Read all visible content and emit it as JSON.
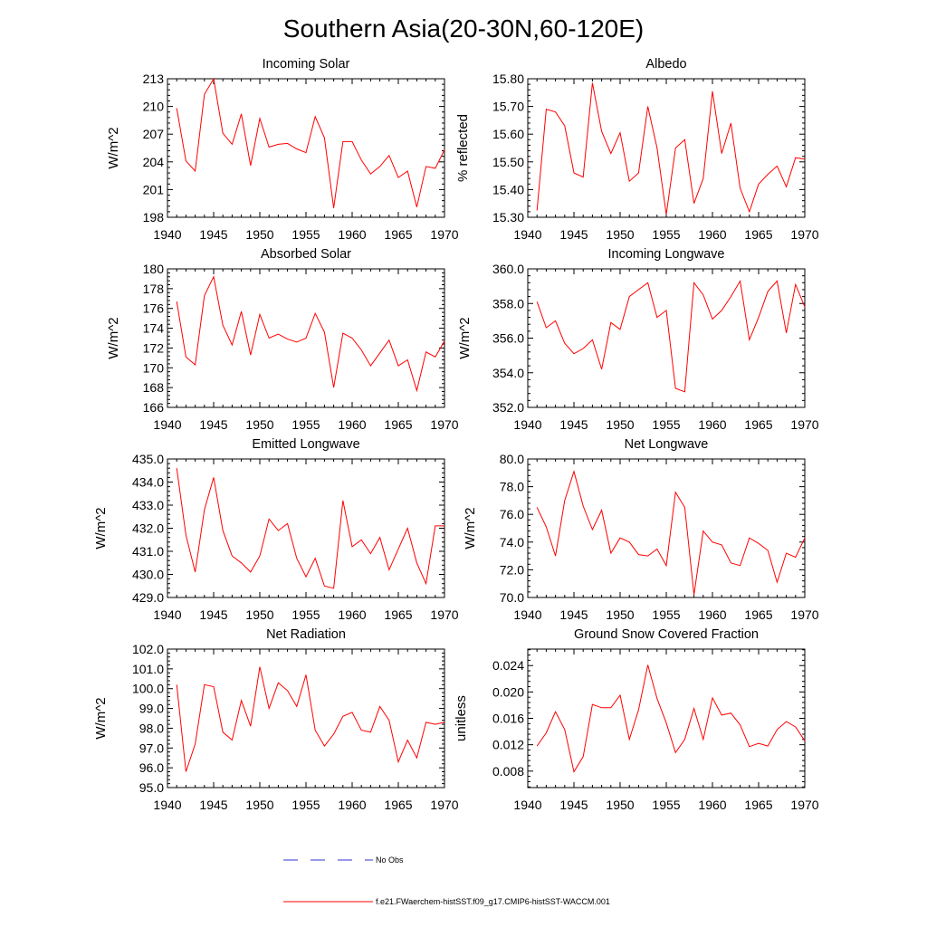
{
  "figure": {
    "title": "Southern Asia(20-30N,60-120E)"
  },
  "legend": {
    "items": [
      {
        "label": "No Obs",
        "color": "#3333cc",
        "style": "dashed"
      },
      {
        "label": "f.e21.FWaerchem-histSST.f09_g17.CMIP6-histSST-WACCM.001",
        "color": "#ff0000",
        "style": "solid"
      }
    ]
  },
  "chart_data": [
    {
      "type": "line",
      "title": "Incoming Solar",
      "ylabel": "W/m^2",
      "xlabel": "",
      "xlim": [
        1940,
        1970
      ],
      "ylim": [
        198,
        213
      ],
      "xticks": [
        1940,
        1945,
        1950,
        1955,
        1960,
        1965,
        1970
      ],
      "yticks": [
        198,
        201,
        204,
        207,
        210,
        213
      ],
      "ytick_labels": [
        "198",
        "201",
        "204",
        "207",
        "210",
        "213"
      ],
      "color": "#ff0000",
      "x": [
        1941,
        1942,
        1943,
        1944,
        1945,
        1946,
        1947,
        1948,
        1949,
        1950,
        1951,
        1952,
        1953,
        1954,
        1955,
        1956,
        1957,
        1958,
        1959,
        1960,
        1961,
        1962,
        1963,
        1964,
        1965,
        1966,
        1967,
        1968,
        1969,
        1970
      ],
      "values": [
        209.8,
        204.1,
        203.0,
        211.3,
        213.0,
        207.1,
        205.9,
        209.2,
        203.6,
        208.7,
        205.6,
        205.9,
        206.0,
        205.4,
        205.0,
        208.9,
        206.6,
        199.0,
        206.2,
        206.2,
        204.2,
        202.7,
        203.5,
        204.7,
        202.3,
        203.0,
        199.1,
        203.5,
        203.3,
        205.3
      ]
    },
    {
      "type": "line",
      "title": "Albedo",
      "ylabel": "% reflected",
      "xlabel": "",
      "xlim": [
        1940,
        1970
      ],
      "ylim": [
        15.3,
        15.8
      ],
      "xticks": [
        1940,
        1945,
        1950,
        1955,
        1960,
        1965,
        1970
      ],
      "yticks": [
        15.3,
        15.4,
        15.5,
        15.6,
        15.7,
        15.8
      ],
      "ytick_labels": [
        "15.30",
        "15.40",
        "15.50",
        "15.60",
        "15.70",
        "15.80"
      ],
      "color": "#ff0000",
      "x": [
        1941,
        1942,
        1943,
        1944,
        1945,
        1946,
        1947,
        1948,
        1949,
        1950,
        1951,
        1952,
        1953,
        1954,
        1955,
        1956,
        1957,
        1958,
        1959,
        1960,
        1961,
        1962,
        1963,
        1964,
        1965,
        1966,
        1967,
        1968,
        1969,
        1970
      ],
      "values": [
        15.325,
        15.69,
        15.68,
        15.63,
        15.46,
        15.445,
        15.785,
        15.61,
        15.53,
        15.605,
        15.43,
        15.46,
        15.7,
        15.55,
        15.31,
        15.55,
        15.58,
        15.35,
        15.44,
        15.755,
        15.53,
        15.64,
        15.405,
        15.32,
        15.42,
        15.455,
        15.485,
        15.41,
        15.515,
        15.51
      ]
    },
    {
      "type": "line",
      "title": "Absorbed Solar",
      "ylabel": "W/m^2",
      "xlabel": "",
      "xlim": [
        1940,
        1970
      ],
      "ylim": [
        166,
        180
      ],
      "xticks": [
        1940,
        1945,
        1950,
        1955,
        1960,
        1965,
        1970
      ],
      "yticks": [
        166,
        168,
        170,
        172,
        174,
        176,
        178,
        180
      ],
      "ytick_labels": [
        "166",
        "168",
        "170",
        "172",
        "174",
        "176",
        "178",
        "180"
      ],
      "color": "#ff0000",
      "x": [
        1941,
        1942,
        1943,
        1944,
        1945,
        1946,
        1947,
        1948,
        1949,
        1950,
        1951,
        1952,
        1953,
        1954,
        1955,
        1956,
        1957,
        1958,
        1959,
        1960,
        1961,
        1962,
        1963,
        1964,
        1965,
        1966,
        1967,
        1968,
        1969,
        1970
      ],
      "values": [
        176.7,
        171.1,
        170.3,
        177.3,
        179.2,
        174.3,
        172.3,
        175.7,
        171.3,
        175.4,
        173.0,
        173.4,
        172.9,
        172.6,
        173.0,
        175.5,
        173.6,
        168.0,
        173.5,
        173.0,
        171.8,
        170.2,
        171.5,
        172.8,
        170.2,
        170.8,
        167.7,
        171.6,
        171.1,
        172.7
      ]
    },
    {
      "type": "line",
      "title": "Incoming Longwave",
      "ylabel": "W/m^2",
      "xlabel": "",
      "xlim": [
        1940,
        1970
      ],
      "ylim": [
        352,
        360
      ],
      "xticks": [
        1940,
        1945,
        1950,
        1955,
        1960,
        1965,
        1970
      ],
      "yticks": [
        352,
        354,
        356,
        358,
        360
      ],
      "ytick_labels": [
        "352.0",
        "354.0",
        "356.0",
        "358.0",
        "360.0"
      ],
      "color": "#ff0000",
      "x": [
        1941,
        1942,
        1943,
        1944,
        1945,
        1946,
        1947,
        1948,
        1949,
        1950,
        1951,
        1952,
        1953,
        1954,
        1955,
        1956,
        1957,
        1958,
        1959,
        1960,
        1961,
        1962,
        1963,
        1964,
        1965,
        1966,
        1967,
        1968,
        1969,
        1970
      ],
      "values": [
        358.1,
        356.6,
        357.0,
        355.7,
        355.1,
        355.4,
        355.9,
        354.2,
        356.9,
        356.5,
        358.4,
        358.8,
        359.2,
        357.2,
        357.6,
        353.1,
        352.9,
        359.2,
        358.5,
        357.1,
        357.6,
        358.4,
        359.3,
        355.9,
        357.2,
        358.7,
        359.3,
        356.3,
        359.1,
        357.8
      ]
    },
    {
      "type": "line",
      "title": "Emitted Longwave",
      "ylabel": "W/m^2",
      "xlabel": "",
      "xlim": [
        1940,
        1970
      ],
      "ylim": [
        429,
        435
      ],
      "xticks": [
        1940,
        1945,
        1950,
        1955,
        1960,
        1965,
        1970
      ],
      "yticks": [
        429,
        430,
        431,
        432,
        433,
        434,
        435
      ],
      "ytick_labels": [
        "429.0",
        "430.0",
        "431.0",
        "432.0",
        "433.0",
        "434.0",
        "435.0"
      ],
      "color": "#ff0000",
      "x": [
        1941,
        1942,
        1943,
        1944,
        1945,
        1946,
        1947,
        1948,
        1949,
        1950,
        1951,
        1952,
        1953,
        1954,
        1955,
        1956,
        1957,
        1958,
        1959,
        1960,
        1961,
        1962,
        1963,
        1964,
        1965,
        1966,
        1967,
        1968,
        1969,
        1970
      ],
      "values": [
        434.6,
        431.7,
        430.1,
        432.8,
        434.2,
        431.9,
        430.8,
        430.5,
        430.1,
        430.8,
        432.4,
        431.9,
        432.2,
        430.7,
        429.9,
        430.7,
        429.5,
        429.4,
        433.2,
        431.2,
        431.5,
        430.9,
        431.6,
        430.2,
        431.1,
        432.0,
        430.5,
        429.6,
        432.1,
        432.1
      ]
    },
    {
      "type": "line",
      "title": "Net Longwave",
      "ylabel": "W/m^2",
      "xlabel": "",
      "xlim": [
        1940,
        1970
      ],
      "ylim": [
        70,
        80
      ],
      "xticks": [
        1940,
        1945,
        1950,
        1955,
        1960,
        1965,
        1970
      ],
      "yticks": [
        70,
        72,
        74,
        76,
        78,
        80
      ],
      "ytick_labels": [
        "70.0",
        "72.0",
        "74.0",
        "76.0",
        "78.0",
        "80.0"
      ],
      "color": "#ff0000",
      "x": [
        1941,
        1942,
        1943,
        1944,
        1945,
        1946,
        1947,
        1948,
        1949,
        1950,
        1951,
        1952,
        1953,
        1954,
        1955,
        1956,
        1957,
        1958,
        1959,
        1960,
        1961,
        1962,
        1963,
        1964,
        1965,
        1966,
        1967,
        1968,
        1969,
        1970
      ],
      "values": [
        76.5,
        75.1,
        73.0,
        77.0,
        79.1,
        76.6,
        74.9,
        76.3,
        73.2,
        74.3,
        74.0,
        73.1,
        73.0,
        73.5,
        72.3,
        77.6,
        76.5,
        70.2,
        74.8,
        74.0,
        73.8,
        72.5,
        72.3,
        74.3,
        73.9,
        73.4,
        71.1,
        73.2,
        72.9,
        74.3
      ]
    },
    {
      "type": "line",
      "title": "Net Radiation",
      "ylabel": "W/m^2",
      "xlabel": "",
      "xlim": [
        1940,
        1970
      ],
      "ylim": [
        95,
        102
      ],
      "xticks": [
        1940,
        1945,
        1950,
        1955,
        1960,
        1965,
        1970
      ],
      "yticks": [
        95,
        96,
        97,
        98,
        99,
        100,
        101,
        102
      ],
      "ytick_labels": [
        "95.0",
        "96.0",
        "97.0",
        "98.0",
        "99.0",
        "100.0",
        "101.0",
        "102.0"
      ],
      "color": "#ff0000",
      "x": [
        1941,
        1942,
        1943,
        1944,
        1945,
        1946,
        1947,
        1948,
        1949,
        1950,
        1951,
        1952,
        1953,
        1954,
        1955,
        1956,
        1957,
        1958,
        1959,
        1960,
        1961,
        1962,
        1963,
        1964,
        1965,
        1966,
        1967,
        1968,
        1969,
        1970
      ],
      "values": [
        100.2,
        95.8,
        97.2,
        100.2,
        100.1,
        97.8,
        97.4,
        99.4,
        98.1,
        101.1,
        99.0,
        100.3,
        99.9,
        99.1,
        100.7,
        97.9,
        97.1,
        97.7,
        98.6,
        98.8,
        97.9,
        97.8,
        99.1,
        98.4,
        96.3,
        97.4,
        96.5,
        98.3,
        98.2,
        98.3
      ]
    },
    {
      "type": "line",
      "title": "Ground Snow Covered Fraction",
      "ylabel": "unitless",
      "xlabel": "",
      "xlim": [
        1940,
        1970
      ],
      "ylim": [
        0.0055,
        0.0265
      ],
      "xticks": [
        1940,
        1945,
        1950,
        1955,
        1960,
        1965,
        1970
      ],
      "yticks": [
        0.008,
        0.012,
        0.016,
        0.02,
        0.024
      ],
      "ytick_labels": [
        "0.008",
        "0.012",
        "0.016",
        "0.020",
        "0.024"
      ],
      "color": "#ff0000",
      "x": [
        1941,
        1942,
        1943,
        1944,
        1945,
        1946,
        1947,
        1948,
        1949,
        1950,
        1951,
        1952,
        1953,
        1954,
        1955,
        1956,
        1957,
        1958,
        1959,
        1960,
        1961,
        1962,
        1963,
        1964,
        1965,
        1966,
        1967,
        1968,
        1969,
        1970
      ],
      "values": [
        0.0118,
        0.0138,
        0.017,
        0.0143,
        0.0079,
        0.0102,
        0.0181,
        0.0176,
        0.0176,
        0.0195,
        0.0128,
        0.0173,
        0.0241,
        0.019,
        0.0153,
        0.0108,
        0.0128,
        0.0175,
        0.0128,
        0.0191,
        0.0165,
        0.0168,
        0.015,
        0.0117,
        0.0122,
        0.0118,
        0.0143,
        0.0155,
        0.0147,
        0.0126
      ]
    }
  ]
}
